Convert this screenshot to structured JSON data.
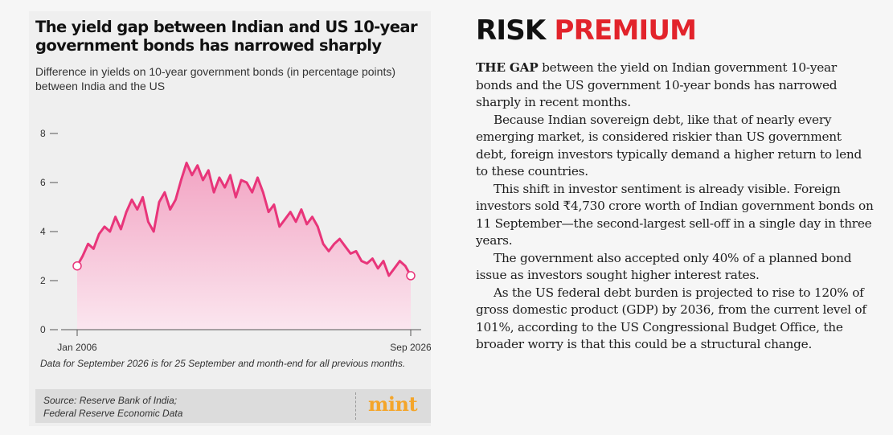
{
  "chart": {
    "title": "The yield gap between Indian and US 10-year government bonds has narrowed sharply",
    "subtitle": "Difference in yields on 10-year government bonds (in percentage points) between India and the US",
    "note": "Data for September 2026 is for 25 September and month-end for all previous months.",
    "source_line1": "Source: Reserve Bank of India;",
    "source_line2": "Federal Reserve Economic Data",
    "logo": "mint"
  },
  "chart_data": {
    "type": "area",
    "title": "The yield gap between Indian and US 10-year government bonds has narrowed sharply",
    "subtitle": "Difference in yields on 10-year government bonds (in percentage points) between India and the US",
    "xlabel": "",
    "ylabel": "",
    "x_start": "2006-01",
    "x_end": "2026-09",
    "x_tick_labels": [
      "Jan 2006",
      "Sep 2026"
    ],
    "y_ticks": [
      0,
      2,
      4,
      6,
      8
    ],
    "ylim": [
      0,
      8
    ],
    "grid": false,
    "legend": "none",
    "line_color": "#e8357a",
    "fill_color_top": "#f2a4c3",
    "fill_color_bottom": "#fbe6ef",
    "series": [
      {
        "values": [
          2.6,
          3.0,
          3.5,
          3.3,
          3.9,
          4.2,
          4.0,
          4.6,
          4.1,
          4.8,
          5.3,
          4.9,
          5.4,
          4.4,
          4.0,
          5.2,
          5.6,
          4.9,
          5.3,
          6.1,
          6.8,
          6.3,
          6.7,
          6.1,
          6.5,
          5.6,
          6.2,
          5.8,
          6.3,
          5.4,
          6.1,
          6.0,
          5.6,
          6.2,
          5.6,
          4.8,
          5.1,
          4.2,
          4.5,
          4.8,
          4.4,
          4.9,
          4.3,
          4.6,
          4.2,
          3.5,
          3.2,
          3.5,
          3.7,
          3.4,
          3.1,
          3.2,
          2.8,
          2.7,
          2.9,
          2.5,
          2.8,
          2.2,
          2.5,
          2.8,
          2.6,
          2.2
        ]
      }
    ],
    "annotations": [
      "start point marked",
      "end point marked"
    ]
  },
  "article": {
    "headline_dark": "RISK",
    "headline_red": "PREMIUM",
    "lead": "THE GAP",
    "p1_rest": " between the yield on Indian government 10-year bonds and the US government 10-year bonds has narrowed sharply in recent months.",
    "p2": "Because Indian sovereign debt, like that of nearly every emerging market, is considered riskier than US government debt, foreign investors typically demand a higher return to lend to these countries.",
    "p3": "This shift in investor sentiment is already visible. Foreign investors sold ₹4,730 crore worth of Indian government bonds on 11 September—the second-largest sell-off in a single day in three years.",
    "p4": "The government also accepted only 40% of a planned bond issue as investors sought higher interest rates.",
    "p5": "As the US federal debt burden is projected to rise to 120% of gross domestic product (GDP) by 2036, from the current level of 101%, according to the US Congressional Budget Office, the broader worry is that this could be a structural change."
  }
}
